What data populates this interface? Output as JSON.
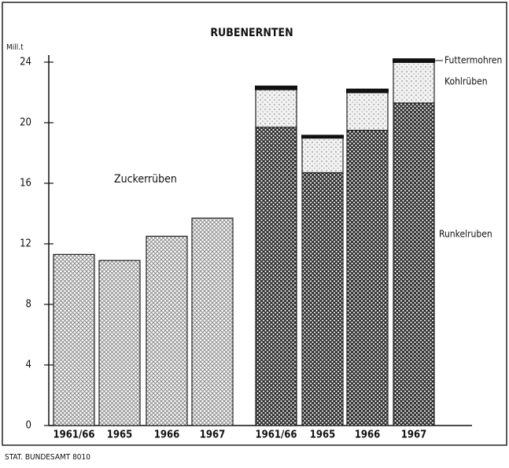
{
  "chart_data": {
    "type": "stacked_bar",
    "title": "RUBENERNTEN",
    "y_label": "Mill.t",
    "source": "STAT. BUNDESAMT 8010",
    "categories": [
      "1961/66",
      "1965",
      "1966",
      "1967",
      "1961/66",
      "1965",
      "1966",
      "1967"
    ],
    "series": [
      {
        "name": "Zuckerrüben",
        "color": "#8a8a8a",
        "values": [
          11.3,
          10.9,
          12.5,
          13.7,
          null,
          null,
          null,
          null
        ]
      },
      {
        "name": "Runkelruben",
        "color": "#2a2a2a",
        "values": [
          null,
          null,
          null,
          null,
          19.7,
          16.7,
          19.5,
          21.3
        ]
      },
      {
        "name": "Kohlrüben",
        "color": "#bdbdbd",
        "values": [
          null,
          null,
          null,
          null,
          2.5,
          2.3,
          2.5,
          2.7
        ]
      },
      {
        "name": "Futtermohren",
        "color": "#111111",
        "values": [
          null,
          null,
          null,
          null,
          0.2,
          0.15,
          0.2,
          0.2
        ]
      }
    ],
    "ylim": [
      0,
      24
    ],
    "yticks": [
      0,
      4,
      8,
      12,
      16,
      20,
      24
    ]
  }
}
